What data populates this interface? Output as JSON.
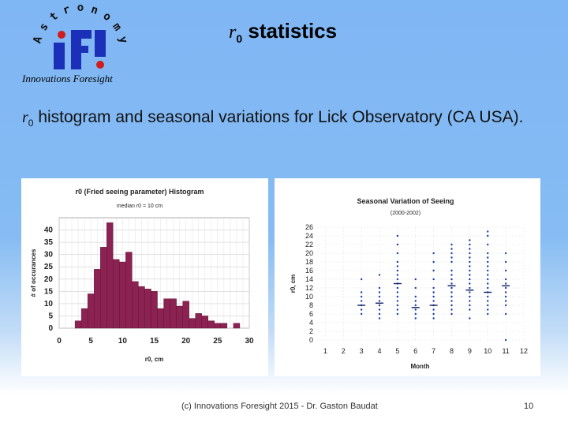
{
  "logo": {
    "letters": [
      "A",
      "s",
      "t",
      "r",
      "o",
      "n",
      "o",
      "m",
      "y"
    ],
    "acronym": "IFI",
    "caption": "Innovations Foresight"
  },
  "slide": {
    "title_symbol": "r",
    "title_subscript": "0",
    "title_text": "statistics",
    "subtitle_symbol": "r",
    "subtitle_subscript": "0",
    "subtitle_text": "histogram and seasonal variations for Lick Observatory (CA USA)."
  },
  "footer": {
    "credit": "(c) Innovations Foresight 2015 - Dr. Gaston Baudat",
    "page_number": "10"
  },
  "chart_data": [
    {
      "type": "bar",
      "title": "r0 (Fried seeing parameter) Histogram",
      "subtitle": "median r0 = 10 cm",
      "xlabel": "r0, cm",
      "ylabel": "# of occurances",
      "xlim": [
        0,
        30
      ],
      "ylim": [
        0,
        45
      ],
      "x_ticks": [
        "0",
        "5",
        "10",
        "15",
        "20",
        "25",
        "30"
      ],
      "y_ticks": [
        "0",
        "5",
        "10",
        "15",
        "20",
        "25",
        "30",
        "35",
        "40"
      ],
      "bin_width": 1,
      "bins": [
        3,
        4,
        5,
        6,
        7,
        8,
        9,
        10,
        11,
        12,
        13,
        14,
        15,
        16,
        17,
        18,
        19,
        20,
        21,
        22,
        23,
        24,
        25,
        26,
        27,
        28
      ],
      "values": [
        3,
        8,
        14,
        24,
        33,
        43,
        28,
        27,
        31,
        19,
        17,
        16,
        15,
        8,
        12,
        12,
        9,
        11,
        4,
        6,
        5,
        3,
        2,
        2,
        0,
        2
      ],
      "grid": true,
      "bar_color": "#8b2252"
    },
    {
      "type": "scatter",
      "title": "Seasonal Variation of Seeing",
      "subtitle": "(2000-2002)",
      "xlabel": "Month",
      "ylabel": "r0, cm",
      "xlim": [
        0.5,
        12
      ],
      "ylim": [
        0,
        26
      ],
      "x_ticks": [
        "1",
        "2",
        "3",
        "4",
        "5",
        "6",
        "7",
        "8",
        "9",
        "10",
        "11",
        "12"
      ],
      "y_ticks": [
        "0",
        "2",
        "4",
        "6",
        "8",
        "10",
        "12",
        "14",
        "16",
        "18",
        "20",
        "22",
        "24",
        "26"
      ],
      "grid": true,
      "point_color": "#1a3fa6",
      "monthly_means": [
        {
          "month": 3,
          "r0": 8
        },
        {
          "month": 4,
          "r0": 8.5
        },
        {
          "month": 5,
          "r0": 13
        },
        {
          "month": 6,
          "r0": 7.5
        },
        {
          "month": 7,
          "r0": 8
        },
        {
          "month": 8,
          "r0": 12.5
        },
        {
          "month": 9,
          "r0": 11.5
        },
        {
          "month": 10,
          "r0": 11
        },
        {
          "month": 11,
          "r0": 12.5
        }
      ],
      "points": [
        {
          "month": 3,
          "r0": [
            6,
            7,
            8,
            9,
            10,
            11,
            14
          ]
        },
        {
          "month": 4,
          "r0": [
            5,
            6,
            7,
            8,
            9,
            10,
            11,
            12,
            15
          ]
        },
        {
          "month": 5,
          "r0": [
            6,
            7,
            8,
            9,
            10,
            11,
            12,
            13,
            14,
            15,
            16,
            17,
            18,
            20,
            22,
            24
          ]
        },
        {
          "month": 6,
          "r0": [
            5,
            6,
            7,
            8,
            9,
            10,
            12,
            14
          ]
        },
        {
          "month": 7,
          "r0": [
            5,
            6,
            7,
            8,
            9,
            10,
            11,
            12,
            14,
            16,
            18,
            20
          ]
        },
        {
          "month": 8,
          "r0": [
            6,
            7,
            8,
            9,
            10,
            11,
            12,
            13,
            14,
            15,
            16,
            18,
            19,
            20,
            21,
            22
          ]
        },
        {
          "month": 9,
          "r0": [
            5,
            7,
            8,
            9,
            10,
            11,
            12,
            13,
            14,
            15,
            16,
            17,
            18,
            19,
            20,
            21,
            22,
            23
          ]
        },
        {
          "month": 10,
          "r0": [
            6,
            7,
            8,
            9,
            10,
            11,
            12,
            13,
            14,
            15,
            16,
            17,
            18,
            19,
            20,
            22,
            24,
            25
          ]
        },
        {
          "month": 11,
          "r0": [
            0,
            6,
            8,
            9,
            10,
            11,
            12,
            13,
            14,
            16,
            18,
            20
          ]
        }
      ]
    }
  ]
}
